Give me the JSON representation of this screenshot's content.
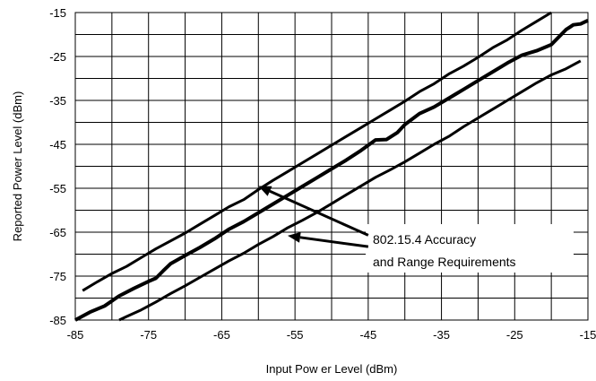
{
  "chart_data": {
    "type": "line",
    "title": "",
    "xlabel": "Input Pow er Level (dBm)",
    "ylabel": "Reported Power Level (dBm)",
    "xlim": [
      -85,
      -15
    ],
    "ylim": [
      -85,
      -15
    ],
    "x_ticks": [
      "-85",
      "-75",
      "-65",
      "-55",
      "-45",
      "-35",
      "-25",
      "-15"
    ],
    "y_ticks": [
      "-15",
      "-25",
      "-35",
      "-45",
      "-55",
      "-65",
      "-75",
      "-85"
    ],
    "x_tick_values": [
      -85,
      -75,
      -65,
      -55,
      -45,
      -35,
      -25,
      -15
    ],
    "y_tick_values": [
      -15,
      -25,
      -35,
      -45,
      -55,
      -65,
      -75,
      -85
    ],
    "grid": true,
    "grid_step": 5,
    "legend": "none",
    "series": [
      {
        "id": "upper_limit",
        "points": [
          [
            -84,
            -78.3
          ],
          [
            -82,
            -76.3
          ],
          [
            -80,
            -74.4
          ],
          [
            -78,
            -72.8
          ],
          [
            -76,
            -70.8
          ],
          [
            -74,
            -68.8
          ],
          [
            -72,
            -67.0
          ],
          [
            -70,
            -65.2
          ],
          [
            -68,
            -63.2
          ],
          [
            -66,
            -61.2
          ],
          [
            -64,
            -59.2
          ],
          [
            -62,
            -57.6
          ],
          [
            -60,
            -55.3
          ],
          [
            -58,
            -53.2
          ],
          [
            -56,
            -51.2
          ],
          [
            -54,
            -49.2
          ],
          [
            -52,
            -47.2
          ],
          [
            -50,
            -45.2
          ],
          [
            -48,
            -43.2
          ],
          [
            -46,
            -41.2
          ],
          [
            -44,
            -39.2
          ],
          [
            -42,
            -37.2
          ],
          [
            -40,
            -35.2
          ],
          [
            -38,
            -33.0
          ],
          [
            -36,
            -31.2
          ],
          [
            -34,
            -29.0
          ],
          [
            -32,
            -27.2
          ],
          [
            -30,
            -25.2
          ],
          [
            -28,
            -23.0
          ],
          [
            -26,
            -21.2
          ],
          [
            -24,
            -19.0
          ],
          [
            -22,
            -17.0
          ],
          [
            -20,
            -15.0
          ]
        ]
      },
      {
        "id": "measured",
        "points": [
          [
            -85,
            -85.0
          ],
          [
            -83,
            -83.2
          ],
          [
            -81,
            -81.8
          ],
          [
            -79,
            -79.5
          ],
          [
            -77,
            -77.8
          ],
          [
            -75,
            -76.2
          ],
          [
            -74,
            -75.5
          ],
          [
            -73,
            -73.8
          ],
          [
            -72,
            -72.2
          ],
          [
            -70,
            -70.3
          ],
          [
            -68,
            -68.5
          ],
          [
            -66,
            -66.5
          ],
          [
            -64,
            -64.3
          ],
          [
            -62,
            -62.6
          ],
          [
            -60,
            -60.6
          ],
          [
            -58,
            -58.6
          ],
          [
            -56,
            -56.6
          ],
          [
            -54,
            -54.6
          ],
          [
            -52,
            -52.6
          ],
          [
            -50,
            -50.6
          ],
          [
            -48,
            -48.6
          ],
          [
            -46,
            -46.4
          ],
          [
            -44,
            -44.0
          ],
          [
            -42.5,
            -43.9
          ],
          [
            -41,
            -42.3
          ],
          [
            -40,
            -40.5
          ],
          [
            -38,
            -38.0
          ],
          [
            -36,
            -36.5
          ],
          [
            -34,
            -34.5
          ],
          [
            -32,
            -32.5
          ],
          [
            -30,
            -30.5
          ],
          [
            -28,
            -28.5
          ],
          [
            -26,
            -26.5
          ],
          [
            -24,
            -24.7
          ],
          [
            -22,
            -23.7
          ],
          [
            -20,
            -22.3
          ],
          [
            -18,
            -18.9
          ],
          [
            -17,
            -17.8
          ],
          [
            -16,
            -17.6
          ],
          [
            -15,
            -16.8
          ]
        ]
      },
      {
        "id": "lower_limit",
        "points": [
          [
            -79,
            -85.0
          ],
          [
            -78,
            -84.2
          ],
          [
            -76,
            -82.7
          ],
          [
            -74,
            -80.9
          ],
          [
            -72,
            -79.0
          ],
          [
            -70,
            -77.2
          ],
          [
            -68,
            -75.3
          ],
          [
            -66,
            -73.4
          ],
          [
            -64,
            -71.5
          ],
          [
            -62,
            -69.8
          ],
          [
            -60,
            -67.8
          ],
          [
            -58,
            -66.0
          ],
          [
            -56,
            -64.0
          ],
          [
            -54,
            -62.3
          ],
          [
            -52,
            -60.5
          ],
          [
            -50,
            -58.5
          ],
          [
            -48,
            -56.5
          ],
          [
            -46,
            -54.5
          ],
          [
            -44,
            -52.5
          ],
          [
            -42,
            -50.8
          ],
          [
            -40,
            -49.0
          ],
          [
            -38,
            -47.0
          ],
          [
            -36,
            -45.0
          ],
          [
            -34,
            -43.2
          ],
          [
            -32,
            -41.0
          ],
          [
            -30,
            -39.0
          ],
          [
            -28,
            -37.0
          ],
          [
            -26,
            -35.0
          ],
          [
            -24,
            -33.0
          ],
          [
            -22,
            -31.0
          ],
          [
            -20,
            -29.2
          ],
          [
            -18,
            -27.8
          ],
          [
            -16,
            -26.0
          ]
        ]
      }
    ],
    "annotation": {
      "lines": [
        "802.15.4 Accuracy",
        "and Range Requirements"
      ],
      "arrow_targets": [
        [
          -60,
          -54.5
        ],
        [
          -56,
          -65.8
        ]
      ],
      "arrow_tails": [
        [
          -45,
          -65.7
        ],
        [
          -45,
          -68.3
        ]
      ]
    }
  }
}
